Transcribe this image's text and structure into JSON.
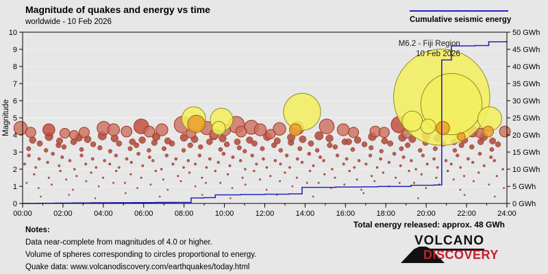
{
  "header": {
    "title": "Magnitude of quakes and energy vs time",
    "subtitle": "worldwide - 10 Feb 2026"
  },
  "legend": {
    "label": "Cumulative seismic energy",
    "line_color": "#2222bb"
  },
  "notes": {
    "heading": "Notes:",
    "lines": [
      "Data near-complete from magnitudes of 4.0 or higher.",
      "Volume of spheres corresponding to circles proportional to energy.",
      "Quake data: www.volcanodiscovery.com/earthquakes/today.html"
    ]
  },
  "total_energy_label": "Total energy released: approx. 48 GWh",
  "logo": {
    "line1": "VOLCANO",
    "line2": "DISCOVERY",
    "accent": "#c41e2f"
  },
  "chart_data": {
    "type": "scatter",
    "title": "Magnitude of quakes and energy vs time",
    "xlabel": "",
    "ylabel": "Magnitude",
    "ylabel_right": "Cumulative seismic energy (GWh)",
    "x_range_hours": [
      0,
      24
    ],
    "mag_range": [
      0,
      10
    ],
    "energy_range_gwh": [
      0,
      50
    ],
    "grid": "horizontal",
    "legend_position": "top-right",
    "x_ticks": [
      "00:00",
      "02:00",
      "04:00",
      "06:00",
      "08:00",
      "10:00",
      "12:00",
      "14:00",
      "16:00",
      "18:00",
      "20:00",
      "22:00",
      "24:00"
    ],
    "y_left_ticks": [
      "0",
      "1",
      "2",
      "3",
      "4",
      "5",
      "6",
      "7",
      "8",
      "9",
      "10"
    ],
    "y_right_ticks": [
      "0 GWh",
      "5 GWh",
      "10 GWh",
      "15 GWh",
      "20 GWh",
      "25 GWh",
      "30 GWh",
      "35 GWh",
      "40 GWh",
      "45 GWh",
      "50 GWh"
    ],
    "annotation": {
      "line1": "M6.2 - Fiji Region",
      "line2": "10 Feb 2026",
      "anchor_hour": 20.77,
      "anchor_mag": 6.2
    },
    "colors": {
      "background": "#e7e7e7",
      "grid": "#f2f2f2",
      "axis": "#000000",
      "energy_line": "#2222bb",
      "dot_fill": "#b35242",
      "dot_stroke": "#8c2314",
      "red_fill": "#cc6f5e",
      "red_dark_fill": "#c04937",
      "red_stroke": "#a03322",
      "yellow_fill": "#f3ef5d",
      "yellow_stroke": "#8f8d20",
      "orange_fill": "#e9a02a",
      "orange_stroke": "#a86208",
      "annotation_text": "#1a1a1a"
    },
    "energy_line_gwh": [
      [
        0,
        0
      ],
      [
        0.8,
        0.05
      ],
      [
        1.6,
        0.1
      ],
      [
        2.5,
        0.15
      ],
      [
        3.4,
        0.18
      ],
      [
        4.4,
        0.22
      ],
      [
        5.5,
        0.25
      ],
      [
        6.6,
        0.28
      ],
      [
        7.6,
        0.3
      ],
      [
        8.35,
        1.6
      ],
      [
        9.0,
        1.7
      ],
      [
        9.55,
        2.5
      ],
      [
        10.8,
        2.6
      ],
      [
        12.0,
        2.7
      ],
      [
        13.2,
        2.8
      ],
      [
        13.85,
        4.7
      ],
      [
        15.5,
        4.8
      ],
      [
        16.8,
        4.85
      ],
      [
        17.6,
        4.95
      ],
      [
        19.25,
        5.3
      ],
      [
        20.4,
        5.4
      ],
      [
        20.77,
        41.9
      ],
      [
        21.25,
        46.0
      ],
      [
        22.4,
        46.1
      ],
      [
        23.1,
        47.2
      ],
      [
        24,
        47.4
      ]
    ],
    "quakes": {
      "yellow_major": [
        [
          20.77,
          6.2
        ],
        [
          21.25,
          5.8
        ],
        [
          13.85,
          5.35
        ],
        [
          23.15,
          4.95
        ],
        [
          8.48,
          4.95
        ],
        [
          9.86,
          4.9
        ],
        [
          9.72,
          4.4
        ],
        [
          19.31,
          4.8
        ],
        [
          20.1,
          4.5
        ]
      ],
      "orange": [
        [
          8.61,
          4.65
        ],
        [
          20.83,
          4.4
        ],
        [
          21.74,
          3.9
        ],
        [
          13.52,
          4.3
        ],
        [
          23.07,
          4.2
        ]
      ],
      "large_red": [
        [
          -0.1,
          4.4,
          0
        ],
        [
          0.4,
          4.15,
          0
        ],
        [
          1.3,
          4.3,
          1
        ],
        [
          2.09,
          4.1,
          0
        ],
        [
          2.55,
          4.0,
          0
        ],
        [
          3.05,
          4.15,
          0
        ],
        [
          4.02,
          4.4,
          0
        ],
        [
          4.51,
          4.3,
          0
        ],
        [
          5.15,
          4.2,
          0
        ],
        [
          5.88,
          4.5,
          1
        ],
        [
          6.28,
          4.2,
          0
        ],
        [
          6.9,
          4.3,
          0
        ],
        [
          7.92,
          4.6,
          0
        ],
        [
          8.35,
          4.1,
          0
        ],
        [
          9.13,
          4.4,
          0
        ],
        [
          9.5,
          4.05,
          0
        ],
        [
          10.01,
          4.3,
          0
        ],
        [
          10.59,
          4.6,
          0
        ],
        [
          10.83,
          4.2,
          0
        ],
        [
          11.34,
          4.45,
          0
        ],
        [
          11.78,
          4.3,
          0
        ],
        [
          12.29,
          4.05,
          0
        ],
        [
          12.73,
          4.35,
          0
        ],
        [
          13.61,
          4.4,
          0
        ],
        [
          15.07,
          4.5,
          0
        ],
        [
          15.89,
          4.3,
          0
        ],
        [
          16.4,
          4.15,
          0
        ],
        [
          17.48,
          4.2,
          0
        ],
        [
          17.92,
          4.15,
          0
        ],
        [
          18.67,
          4.6,
          1
        ],
        [
          19.04,
          4.1,
          0
        ],
        [
          21.69,
          4.05,
          0
        ],
        [
          22.3,
          4.2,
          1
        ],
        [
          22.68,
          4.1,
          0
        ],
        [
          23.9,
          4.2,
          0
        ]
      ],
      "small": [
        [
          0.2,
          1.2
        ],
        [
          0.57,
          1.7
        ],
        [
          0.79,
          0.9
        ],
        [
          1.3,
          1.5
        ],
        [
          1.44,
          1.1
        ],
        [
          1.87,
          1.9
        ],
        [
          2.16,
          1.4
        ],
        [
          2.49,
          0.8
        ],
        [
          2.68,
          1.6
        ],
        [
          3.15,
          1.3
        ],
        [
          3.4,
          1.8
        ],
        [
          3.77,
          1.0
        ],
        [
          3.99,
          1.5
        ],
        [
          4.5,
          1.2
        ],
        [
          4.64,
          1.9
        ],
        [
          5.07,
          1.2
        ],
        [
          5.36,
          1.7
        ],
        [
          5.69,
          0.9
        ],
        [
          5.88,
          1.5
        ],
        [
          6.35,
          1.1
        ],
        [
          6.6,
          1.9
        ],
        [
          6.97,
          1.4
        ],
        [
          7.19,
          0.8
        ],
        [
          7.7,
          1.6
        ],
        [
          7.84,
          1.3
        ],
        [
          8.27,
          1.8
        ],
        [
          8.56,
          1.0
        ],
        [
          8.89,
          1.5
        ],
        [
          9.08,
          1.2
        ],
        [
          9.55,
          1.9
        ],
        [
          9.8,
          1.2
        ],
        [
          10.17,
          1.7
        ],
        [
          10.39,
          0.9
        ],
        [
          10.9,
          1.5
        ],
        [
          11.04,
          1.1
        ],
        [
          11.47,
          1.9
        ],
        [
          11.76,
          1.4
        ],
        [
          12.09,
          0.8
        ],
        [
          12.28,
          1.6
        ],
        [
          12.75,
          1.3
        ],
        [
          13.0,
          1.8
        ],
        [
          13.37,
          1.0
        ],
        [
          13.59,
          1.5
        ],
        [
          14.1,
          1.2
        ],
        [
          14.24,
          1.9
        ],
        [
          14.67,
          1.2
        ],
        [
          14.96,
          1.7
        ],
        [
          15.29,
          0.9
        ],
        [
          15.48,
          1.5
        ],
        [
          15.95,
          1.1
        ],
        [
          16.2,
          1.9
        ],
        [
          16.57,
          1.4
        ],
        [
          16.79,
          0.8
        ],
        [
          17.3,
          1.6
        ],
        [
          17.44,
          1.3
        ],
        [
          17.87,
          1.8
        ],
        [
          18.16,
          1.0
        ],
        [
          18.49,
          1.5
        ],
        [
          18.68,
          1.2
        ],
        [
          19.15,
          1.9
        ],
        [
          19.4,
          1.2
        ],
        [
          19.77,
          1.7
        ],
        [
          19.99,
          0.9
        ],
        [
          20.5,
          1.5
        ],
        [
          20.64,
          1.1
        ],
        [
          21.07,
          1.9
        ],
        [
          21.36,
          1.4
        ],
        [
          21.69,
          0.8
        ],
        [
          21.88,
          1.6
        ],
        [
          22.35,
          1.3
        ],
        [
          22.6,
          1.8
        ],
        [
          23.11,
          1.1
        ],
        [
          23.5,
          1.6
        ],
        [
          23.85,
          0.9
        ],
        [
          0.9,
          0.4
        ],
        [
          2.3,
          0.5
        ],
        [
          3.6,
          0.3
        ],
        [
          5.1,
          0.6
        ],
        [
          6.8,
          0.4
        ],
        [
          8.9,
          0.5
        ],
        [
          10.3,
          0.3
        ],
        [
          12.6,
          0.5
        ],
        [
          14.4,
          0.4
        ],
        [
          16.9,
          0.6
        ],
        [
          19.6,
          0.3
        ],
        [
          21.9,
          0.5
        ],
        [
          23.4,
          0.4
        ],
        [
          0.1,
          2.3
        ],
        [
          0.31,
          2.8
        ],
        [
          0.65,
          2.1
        ],
        [
          0.82,
          2.6
        ],
        [
          1.24,
          2.4
        ],
        [
          1.5,
          2.9
        ],
        [
          1.81,
          2.2
        ],
        [
          1.96,
          2.7
        ],
        [
          2.34,
          2.5
        ],
        [
          2.57,
          2.0
        ],
        [
          2.92,
          2.8
        ],
        [
          3.13,
          2.3
        ],
        [
          3.47,
          2.6
        ],
        [
          3.64,
          2.1
        ],
        [
          4.06,
          2.5
        ],
        [
          4.32,
          2.3
        ],
        [
          4.63,
          2.8
        ],
        [
          4.78,
          2.1
        ],
        [
          5.16,
          2.6
        ],
        [
          5.39,
          2.4
        ],
        [
          5.74,
          2.9
        ],
        [
          5.95,
          2.2
        ],
        [
          6.29,
          2.7
        ],
        [
          6.46,
          2.5
        ],
        [
          6.88,
          2.0
        ],
        [
          7.14,
          2.8
        ],
        [
          7.45,
          2.3
        ],
        [
          7.6,
          2.6
        ],
        [
          7.98,
          2.1
        ],
        [
          8.21,
          2.5
        ],
        [
          8.56,
          2.3
        ],
        [
          8.77,
          2.8
        ],
        [
          9.11,
          2.1
        ],
        [
          9.28,
          2.6
        ],
        [
          9.7,
          2.4
        ],
        [
          9.96,
          2.9
        ],
        [
          10.27,
          2.2
        ],
        [
          10.42,
          2.7
        ],
        [
          10.8,
          2.5
        ],
        [
          11.03,
          2.0
        ],
        [
          11.38,
          2.8
        ],
        [
          11.59,
          2.3
        ],
        [
          11.93,
          2.6
        ],
        [
          12.1,
          2.1
        ],
        [
          12.52,
          2.5
        ],
        [
          12.78,
          2.3
        ],
        [
          13.09,
          2.8
        ],
        [
          13.24,
          2.1
        ],
        [
          13.62,
          2.6
        ],
        [
          13.85,
          2.4
        ],
        [
          14.2,
          2.9
        ],
        [
          14.41,
          2.2
        ],
        [
          14.75,
          2.7
        ],
        [
          14.92,
          2.5
        ],
        [
          15.34,
          2.0
        ],
        [
          15.6,
          2.8
        ],
        [
          15.91,
          2.3
        ],
        [
          16.06,
          2.6
        ],
        [
          16.44,
          2.1
        ],
        [
          16.67,
          2.5
        ],
        [
          17.02,
          2.3
        ],
        [
          17.23,
          2.8
        ],
        [
          17.57,
          2.1
        ],
        [
          17.74,
          2.6
        ],
        [
          18.16,
          2.4
        ],
        [
          18.42,
          2.9
        ],
        [
          18.73,
          2.2
        ],
        [
          18.88,
          2.7
        ],
        [
          19.26,
          2.5
        ],
        [
          19.49,
          2.0
        ],
        [
          19.84,
          2.8
        ],
        [
          20.05,
          2.3
        ],
        [
          20.39,
          2.6
        ],
        [
          20.56,
          2.1
        ],
        [
          20.98,
          2.5
        ],
        [
          21.24,
          2.3
        ],
        [
          21.55,
          2.8
        ],
        [
          21.7,
          2.1
        ],
        [
          22.08,
          2.6
        ],
        [
          22.31,
          2.4
        ],
        [
          22.66,
          2.9
        ],
        [
          22.87,
          2.2
        ],
        [
          23.21,
          2.7
        ],
        [
          23.38,
          2.5
        ],
        [
          23.8,
          2.0
        ],
        [
          0.3,
          3.2
        ],
        [
          0.85,
          3.5
        ],
        [
          1.16,
          3.1
        ],
        [
          1.78,
          3.4
        ],
        [
          2.05,
          3.3
        ],
        [
          2.53,
          3.6
        ],
        [
          2.92,
          3.15
        ],
        [
          3.5,
          3.45
        ],
        [
          3.83,
          3.25
        ],
        [
          4.34,
          3.05
        ],
        [
          4.78,
          3.5
        ],
        [
          5.33,
          3.2
        ],
        [
          5.64,
          3.4
        ],
        [
          6.26,
          3.1
        ],
        [
          6.53,
          3.55
        ],
        [
          7.01,
          3.2
        ],
        [
          7.4,
          3.5
        ],
        [
          7.98,
          3.1
        ],
        [
          8.31,
          3.4
        ],
        [
          8.82,
          3.3
        ],
        [
          9.26,
          3.6
        ],
        [
          9.81,
          3.15
        ],
        [
          10.12,
          3.45
        ],
        [
          10.74,
          3.25
        ],
        [
          11.01,
          3.05
        ],
        [
          11.49,
          3.5
        ],
        [
          11.88,
          3.2
        ],
        [
          12.46,
          3.4
        ],
        [
          12.79,
          3.1
        ],
        [
          13.3,
          3.55
        ],
        [
          13.74,
          3.2
        ],
        [
          14.29,
          3.5
        ],
        [
          14.6,
          3.1
        ],
        [
          15.22,
          3.4
        ],
        [
          15.49,
          3.3
        ],
        [
          15.97,
          3.6
        ],
        [
          16.36,
          3.15
        ],
        [
          16.94,
          3.45
        ],
        [
          17.27,
          3.25
        ],
        [
          17.78,
          3.05
        ],
        [
          18.22,
          3.5
        ],
        [
          18.77,
          3.2
        ],
        [
          19.08,
          3.4
        ],
        [
          19.7,
          3.1
        ],
        [
          19.97,
          3.55
        ],
        [
          20.45,
          3.2
        ],
        [
          20.84,
          3.5
        ],
        [
          21.42,
          3.1
        ],
        [
          21.75,
          3.4
        ],
        [
          22.26,
          3.3
        ],
        [
          22.7,
          3.6
        ],
        [
          23.25,
          3.15
        ],
        [
          23.56,
          3.45
        ],
        [
          0.5,
          3.7
        ],
        [
          1.31,
          3.9
        ],
        [
          1.83,
          3.65
        ],
        [
          2.78,
          3.85
        ],
        [
          3.22,
          3.75
        ],
        [
          3.95,
          3.95
        ],
        [
          4.56,
          3.8
        ],
        [
          5.44,
          3.6
        ],
        [
          5.93,
          3.7
        ],
        [
          6.62,
          3.9
        ],
        [
          7.19,
          3.65
        ],
        [
          8.0,
          3.85
        ],
        [
          8.52,
          3.75
        ],
        [
          9.47,
          3.95
        ],
        [
          9.91,
          3.8
        ],
        [
          10.64,
          3.6
        ],
        [
          11.25,
          3.7
        ],
        [
          12.13,
          3.9
        ],
        [
          12.62,
          3.65
        ],
        [
          13.31,
          3.85
        ],
        [
          13.88,
          3.75
        ],
        [
          14.69,
          3.95
        ],
        [
          15.21,
          3.8
        ],
        [
          16.16,
          3.6
        ],
        [
          16.6,
          3.7
        ],
        [
          17.33,
          3.9
        ],
        [
          17.94,
          3.65
        ],
        [
          18.82,
          3.85
        ],
        [
          19.31,
          3.75
        ],
        [
          20.0,
          3.95
        ],
        [
          20.57,
          3.8
        ],
        [
          21.38,
          3.6
        ],
        [
          21.9,
          3.7
        ],
        [
          22.85,
          3.9
        ],
        [
          23.29,
          3.65
        ]
      ]
    }
  }
}
